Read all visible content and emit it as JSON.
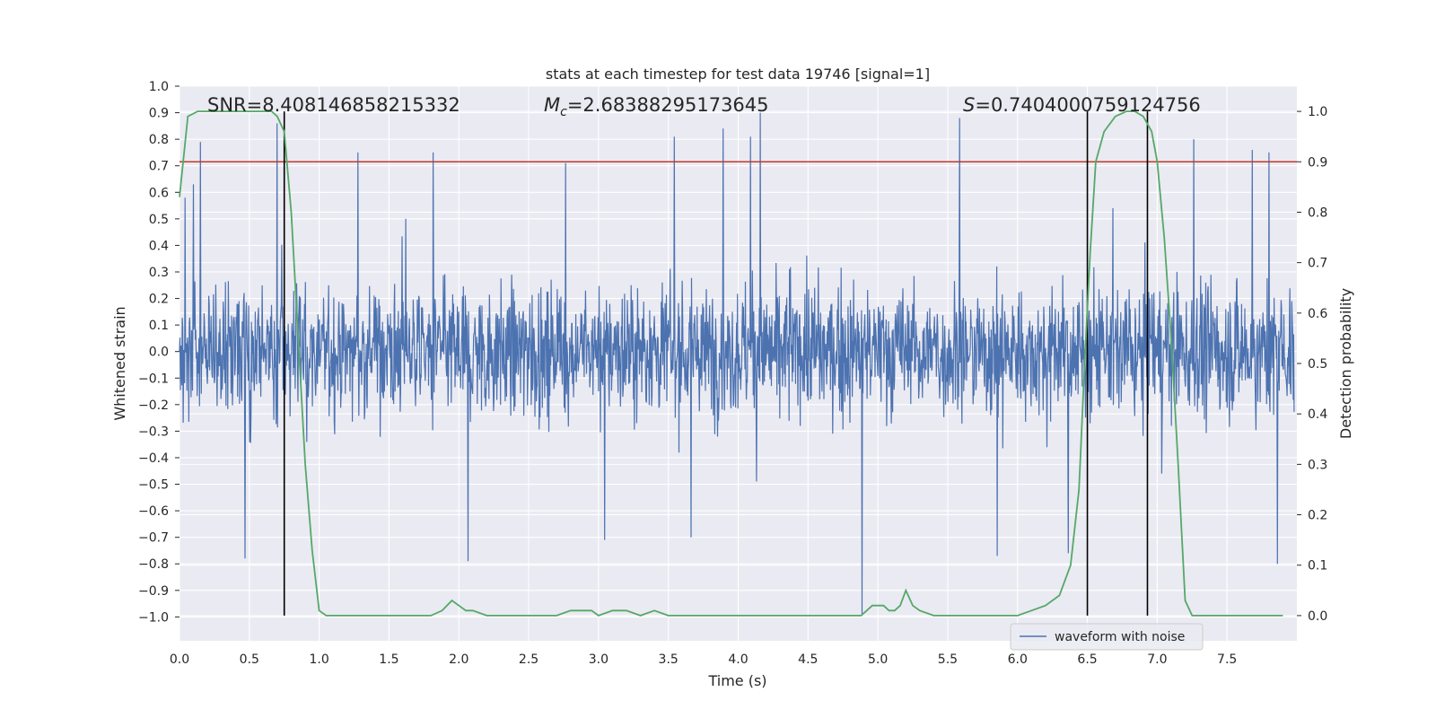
{
  "chart_data": {
    "type": "line",
    "title": "stats at each timestep for test data 19746 [signal=1]",
    "xlabel": "Time (s)",
    "ylabel": "Whitened strain",
    "y2label": "Detection probability",
    "xlim": [
      0.0,
      8.0
    ],
    "ylim": [
      -1.09,
      1.0
    ],
    "y2lim": [
      -0.05,
      1.05
    ],
    "x_ticks": [
      0.0,
      0.5,
      1.0,
      1.5,
      2.0,
      2.5,
      3.0,
      3.5,
      4.0,
      4.5,
      5.0,
      5.5,
      6.0,
      6.5,
      7.0,
      7.5
    ],
    "x_tick_labels": [
      "0.0",
      "0.5",
      "1.0",
      "1.5",
      "2.0",
      "2.5",
      "3.0",
      "3.5",
      "4.0",
      "4.5",
      "5.0",
      "5.5",
      "6.0",
      "6.5",
      "7.0",
      "7.5"
    ],
    "y_ticks": [
      1.0,
      0.9,
      0.8,
      0.7,
      0.6,
      0.5,
      0.4,
      0.3,
      0.2,
      0.1,
      0.0,
      -0.1,
      -0.2,
      -0.3,
      -0.4,
      -0.5,
      -0.6,
      -0.7,
      -0.8,
      -0.9,
      -1.0
    ],
    "y_tick_labels": [
      "1.0",
      "0.9",
      "0.8",
      "0.7",
      "0.6",
      "0.5",
      "0.4",
      "0.3",
      "0.2",
      "0.1",
      "0.0",
      "−0.1",
      "−0.2",
      "−0.3",
      "−0.4",
      "−0.5",
      "−0.6",
      "−0.7",
      "−0.8",
      "−0.9",
      "−1.0"
    ],
    "y2_ticks": [
      1.0,
      0.9,
      0.8,
      0.7,
      0.6,
      0.5,
      0.4,
      0.3,
      0.2,
      0.1,
      0.0
    ],
    "y2_tick_labels": [
      "1.0",
      "0.9",
      "0.8",
      "0.7",
      "0.6",
      "0.5",
      "0.4",
      "0.3",
      "0.2",
      "0.1",
      "0.0"
    ],
    "grid": true,
    "legend_placement": "lower-right",
    "annotations": {
      "snr": "SNR=8.408146858215332",
      "mc_symbol": "M",
      "mc_sub": "c",
      "mc_value": "=2.68388295173645",
      "s_symbol": "S",
      "s_value": "=0.7404000759124756"
    },
    "threshold_line": {
      "axis": "y2",
      "value": 0.9,
      "color": "#c0392b"
    },
    "vertical_lines": [
      0.75,
      6.5,
      6.93
    ],
    "series": [
      {
        "name": "waveform with noise",
        "axis": "y",
        "color": "#4c72b0",
        "description": "whitened strain, dense noise roughly within ±0.45 with occasional spikes",
        "spikes": [
          {
            "x": 0.04,
            "y": 0.58
          },
          {
            "x": 0.1,
            "y": 0.63
          },
          {
            "x": 0.15,
            "y": 0.79
          },
          {
            "x": 0.47,
            "y": -0.78
          },
          {
            "x": 0.7,
            "y": 0.86
          },
          {
            "x": 1.28,
            "y": 0.75
          },
          {
            "x": 1.82,
            "y": 0.75
          },
          {
            "x": 2.07,
            "y": -0.79
          },
          {
            "x": 2.77,
            "y": 0.71
          },
          {
            "x": 3.05,
            "y": -0.71
          },
          {
            "x": 3.55,
            "y": 0.81
          },
          {
            "x": 3.67,
            "y": -0.7
          },
          {
            "x": 3.9,
            "y": 0.84
          },
          {
            "x": 4.1,
            "y": 0.81
          },
          {
            "x": 4.17,
            "y": 0.9
          },
          {
            "x": 4.9,
            "y": -0.99
          },
          {
            "x": 5.6,
            "y": 0.88
          },
          {
            "x": 5.87,
            "y": -0.77
          },
          {
            "x": 6.38,
            "y": -0.76
          },
          {
            "x": 7.28,
            "y": 0.8
          },
          {
            "x": 7.7,
            "y": 0.76
          },
          {
            "x": 7.82,
            "y": 0.75
          },
          {
            "x": 7.88,
            "y": -0.8
          }
        ]
      },
      {
        "name": "",
        "axis": "y2",
        "color": "#55a868",
        "x": [
          0.0,
          0.06,
          0.13,
          0.2,
          0.3,
          0.4,
          0.5,
          0.6,
          0.66,
          0.7,
          0.75,
          0.8,
          0.85,
          0.9,
          0.95,
          1.0,
          1.05,
          1.1,
          1.2,
          1.3,
          1.4,
          1.5,
          1.6,
          1.7,
          1.8,
          1.88,
          1.95,
          2.0,
          2.05,
          2.1,
          2.2,
          2.3,
          2.5,
          2.7,
          2.8,
          2.85,
          2.9,
          2.95,
          3.0,
          3.1,
          3.2,
          3.3,
          3.4,
          3.5,
          3.6,
          3.8,
          4.0,
          4.2,
          4.4,
          4.6,
          4.8,
          4.88,
          4.92,
          4.96,
          5.0,
          5.04,
          5.08,
          5.12,
          5.16,
          5.2,
          5.25,
          5.3,
          5.4,
          5.6,
          5.8,
          5.9,
          6.0,
          6.1,
          6.2,
          6.3,
          6.38,
          6.44,
          6.48,
          6.52,
          6.56,
          6.62,
          6.7,
          6.78,
          6.84,
          6.9,
          6.96,
          7.0,
          7.05,
          7.1,
          7.15,
          7.2,
          7.25,
          7.3,
          7.5,
          7.7,
          7.9
        ],
        "y": [
          0.83,
          0.99,
          1.0,
          1.0,
          1.0,
          1.0,
          1.0,
          1.0,
          1.0,
          0.99,
          0.96,
          0.8,
          0.55,
          0.3,
          0.13,
          0.01,
          0.0,
          0.0,
          0.0,
          0.0,
          0.0,
          0.0,
          0.0,
          0.0,
          0.0,
          0.01,
          0.03,
          0.02,
          0.01,
          0.01,
          0.0,
          0.0,
          0.0,
          0.0,
          0.01,
          0.01,
          0.01,
          0.01,
          0.0,
          0.01,
          0.01,
          0.0,
          0.01,
          0.0,
          0.0,
          0.0,
          0.0,
          0.0,
          0.0,
          0.0,
          0.0,
          0.0,
          0.01,
          0.02,
          0.02,
          0.02,
          0.01,
          0.01,
          0.02,
          0.05,
          0.02,
          0.01,
          0.0,
          0.0,
          0.0,
          0.0,
          0.0,
          0.01,
          0.02,
          0.04,
          0.1,
          0.25,
          0.5,
          0.72,
          0.9,
          0.96,
          0.99,
          1.0,
          1.0,
          0.99,
          0.96,
          0.9,
          0.75,
          0.55,
          0.3,
          0.03,
          0.0,
          0.0,
          0.0,
          0.0,
          0.0
        ]
      }
    ]
  }
}
